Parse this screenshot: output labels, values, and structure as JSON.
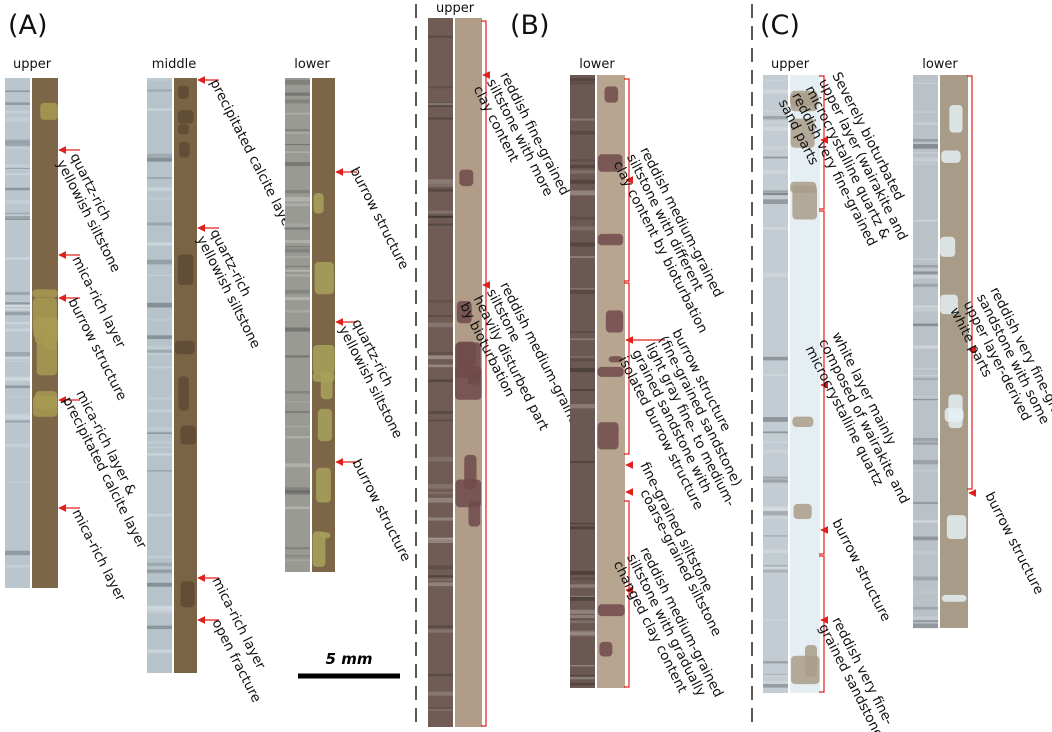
{
  "panels": [
    {
      "label": "(A)",
      "columns": [
        {
          "label": "upper",
          "notes": [
            [
              "quartz-rich",
              "yellowish siltstone"
            ],
            [
              "mica-rich layer"
            ],
            [
              "burrow structure"
            ],
            [
              "mica-rich layer &",
              "precipitated calcite layer"
            ],
            [
              "mica-rich layer"
            ]
          ]
        },
        {
          "label": "middle",
          "notes": [
            [
              "precipitated calcite layer"
            ],
            [
              "quartz-rich",
              "yellowish siltstone"
            ],
            [
              "mica-rich layer"
            ],
            [
              "open fracture"
            ]
          ]
        },
        {
          "label": "lower",
          "notes": [
            [
              "burrow structure"
            ],
            [
              "quartz-rich",
              "yellowish siltstone"
            ],
            [
              "burrow structure"
            ]
          ]
        }
      ]
    },
    {
      "label": "(B)",
      "columns": [
        {
          "label": "upper",
          "notes": [
            [
              "reddish fine-grained",
              "siltstone with more",
              "clay content"
            ],
            [
              "reddish medium-grained",
              "siltstone",
              "heavily disturbed part",
              "by bioturbation"
            ]
          ]
        },
        {
          "label": "lower",
          "notes": [
            [
              "reddish medium-grained",
              "siltstone with different",
              "clay content by bioturbation"
            ],
            [
              "burrow structure",
              "(fine-grained sandstone)",
              "light gray fine- to medium-",
              "grained sandstone with",
              "isolated burrow structure"
            ],
            [
              "fine-grained siltstone"
            ],
            [
              "coarse-grained siltstone"
            ],
            [
              "reddish medium-grained",
              "siltstone with gradually",
              "changed clay content"
            ]
          ]
        }
      ]
    },
    {
      "label": "(C)",
      "columns": [
        {
          "label": "upper",
          "notes": [
            [
              "Severely bioturbated",
              "upper layer (wairakite and",
              "microcrystalline quartz &",
              "reddish very fine-grained",
              "sand parts"
            ],
            [
              "white layer mainly",
              "composed of wairakite and",
              "microcrystalline quartz"
            ],
            [
              "burrow structure"
            ],
            [
              "reddish very fine-",
              "grained sandstone"
            ]
          ]
        },
        {
          "label": "lower",
          "notes": [
            [
              "reddish very fine-grained",
              "sandstone with some",
              "upper layer-derived",
              "white parts"
            ],
            [
              "burrow structure"
            ]
          ]
        }
      ]
    }
  ],
  "scale_bar": "5 mm"
}
